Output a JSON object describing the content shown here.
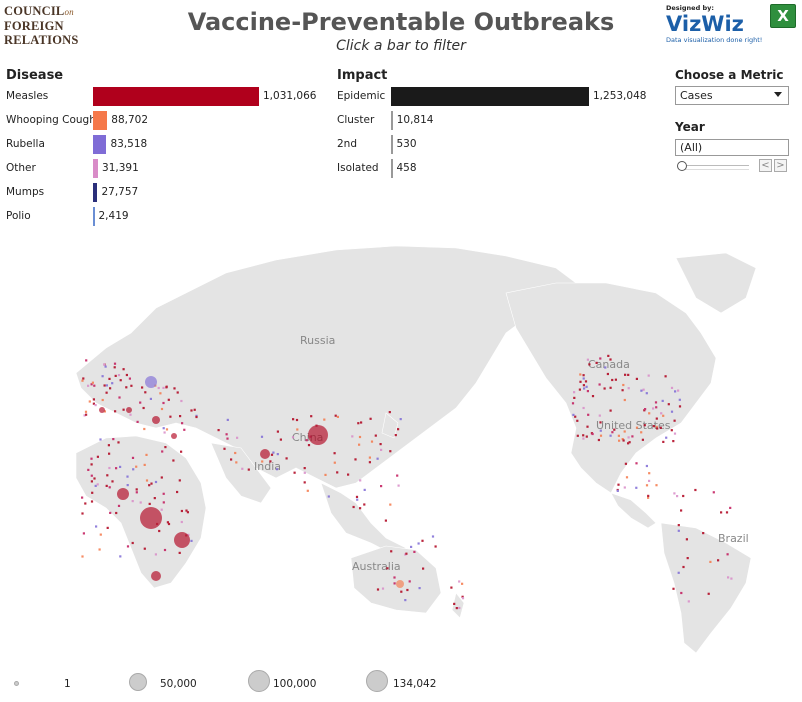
{
  "header": {
    "logo_line1": "COUNCIL",
    "logo_on": "on",
    "logo_line2": "FOREIGN",
    "logo_line3": "RELATIONS",
    "title": "Vaccine-Preventable Outbreaks",
    "subtitle": "Click a bar to filter",
    "vizwiz_by": "Designed by:",
    "vizwiz_brand": "VizWiz",
    "vizwiz_tag": "Data visualization done right!",
    "excel_icon": "excel-icon"
  },
  "disease": {
    "title": "Disease",
    "items": [
      {
        "label": "Measles",
        "value": "1,031,066",
        "n": 1031066,
        "color": "#b0001c"
      },
      {
        "label": "Whooping Cough",
        "value": "88,702",
        "n": 88702,
        "color": "#f5784a"
      },
      {
        "label": "Rubella",
        "value": "83,518",
        "n": 83518,
        "color": "#7f6cd6"
      },
      {
        "label": "Other",
        "value": "31,391",
        "n": 31391,
        "color": "#d98cc8"
      },
      {
        "label": "Mumps",
        "value": "27,757",
        "n": 27757,
        "color": "#2b2f7a"
      },
      {
        "label": "Polio",
        "value": "2,419",
        "n": 2419,
        "color": "#6a8ed4"
      }
    ]
  },
  "impact": {
    "title": "Impact",
    "items": [
      {
        "label": "Epidemic",
        "value": "1,253,048",
        "n": 1253048,
        "color": "#1a1a1a"
      },
      {
        "label": "Cluster",
        "value": "10,814",
        "n": 10814,
        "color": "#999999"
      },
      {
        "label": "2nd",
        "value": "530",
        "n": 530,
        "color": "#999999"
      },
      {
        "label": "Isolated",
        "value": "458",
        "n": 458,
        "color": "#999999"
      }
    ]
  },
  "controls": {
    "metric_label": "Choose a Metric",
    "metric_value": "Cases",
    "year_label": "Year",
    "year_value": "(All)",
    "prev": "<",
    "next": ">"
  },
  "map": {
    "labels": [
      "Russia",
      "Canada",
      "China",
      "India",
      "United States",
      "Australia",
      "Brazil"
    ]
  },
  "legend": {
    "items": [
      {
        "label": "1"
      },
      {
        "label": "50,000"
      },
      {
        "label": "100,000"
      },
      {
        "label": "134,042"
      }
    ]
  }
}
